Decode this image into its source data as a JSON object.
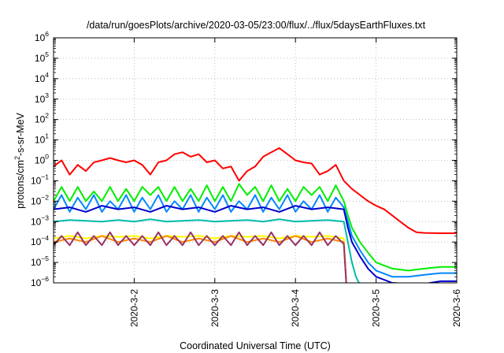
{
  "chart_data": {
    "type": "line",
    "title": "/data/run/goesPlots/archive/2020-03-05/23:00/flux/../flux/5daysEarthFluxes.txt",
    "xlabel": "Coordinated Universal Time (UTC)",
    "ylabel": "protons/cm²-s-sr-MeV",
    "ylabel_parts": {
      "pre": "protons/cm",
      "sup": "2",
      "post": "-s-sr-MeV"
    },
    "x_ticks": [
      "2020-3-2",
      "2020-3-3",
      "2020-3-4",
      "2020-3-5",
      "2020-3-6"
    ],
    "x_tick_days": [
      2,
      3,
      4,
      5,
      6
    ],
    "xlim_days": [
      1,
      6
    ],
    "y_scale": "log",
    "ylim": [
      1e-06,
      1000000.0
    ],
    "y_tick_exponents": [
      -6,
      -5,
      -4,
      -3,
      -2,
      -1,
      0,
      1,
      2,
      3,
      4,
      5,
      6
    ],
    "grid": true,
    "legend": "none",
    "series": [
      {
        "color": "#ff0000",
        "x": [
          1.0,
          1.1,
          1.2,
          1.3,
          1.4,
          1.5,
          1.6,
          1.7,
          1.8,
          1.9,
          2.0,
          2.1,
          2.2,
          2.3,
          2.4,
          2.5,
          2.6,
          2.7,
          2.8,
          2.9,
          3.0,
          3.1,
          3.2,
          3.3,
          3.4,
          3.5,
          3.6,
          3.7,
          3.8,
          3.9,
          4.0,
          4.1,
          4.2,
          4.3,
          4.4,
          4.5,
          4.6,
          4.7,
          4.8,
          4.9,
          5.0,
          5.1,
          5.2,
          5.3,
          5.4,
          5.5,
          5.6,
          5.8,
          6.0
        ],
        "y": [
          0.5,
          1.0,
          0.2,
          0.6,
          0.3,
          0.8,
          1.0,
          1.3,
          1.0,
          0.8,
          1.0,
          0.6,
          0.2,
          0.8,
          1.0,
          2.0,
          2.5,
          1.5,
          2.0,
          0.8,
          1.0,
          0.4,
          0.5,
          0.1,
          0.3,
          0.5,
          1.5,
          2.5,
          4.0,
          2.0,
          1.0,
          0.8,
          0.7,
          0.2,
          0.3,
          0.6,
          0.1,
          0.04,
          0.02,
          0.01,
          0.006,
          0.004,
          0.002,
          0.001,
          0.0005,
          0.0003,
          0.00028,
          0.00027,
          0.00027
        ]
      },
      {
        "color": "#00ee00",
        "x": [
          1.0,
          1.1,
          1.2,
          1.3,
          1.4,
          1.5,
          1.6,
          1.7,
          1.8,
          1.9,
          2.0,
          2.1,
          2.2,
          2.3,
          2.4,
          2.5,
          2.6,
          2.7,
          2.8,
          2.9,
          3.0,
          3.1,
          3.2,
          3.3,
          3.4,
          3.5,
          3.6,
          3.7,
          3.8,
          3.9,
          4.0,
          4.1,
          4.2,
          4.3,
          4.4,
          4.5,
          4.6,
          4.65,
          4.7,
          4.8,
          4.9,
          5.0,
          5.2,
          5.4,
          5.6,
          5.8,
          6.0
        ],
        "y": [
          0.01,
          0.05,
          0.01,
          0.05,
          0.01,
          0.03,
          0.01,
          0.05,
          0.01,
          0.04,
          0.01,
          0.05,
          0.02,
          0.05,
          0.01,
          0.05,
          0.01,
          0.04,
          0.01,
          0.06,
          0.01,
          0.05,
          0.01,
          0.07,
          0.02,
          0.05,
          0.01,
          0.06,
          0.01,
          0.04,
          0.01,
          0.05,
          0.02,
          0.05,
          0.01,
          0.06,
          0.01,
          0.002,
          0.0005,
          0.0001,
          3e-05,
          1e-05,
          5e-06,
          4e-06,
          5e-06,
          6e-06,
          6e-06
        ]
      },
      {
        "color": "#0088ff",
        "x": [
          1.0,
          1.1,
          1.2,
          1.3,
          1.4,
          1.5,
          1.6,
          1.7,
          1.8,
          1.9,
          2.0,
          2.1,
          2.2,
          2.3,
          2.4,
          2.5,
          2.6,
          2.7,
          2.8,
          2.9,
          3.0,
          3.1,
          3.2,
          3.3,
          3.4,
          3.5,
          3.6,
          3.7,
          3.8,
          3.9,
          4.0,
          4.1,
          4.2,
          4.3,
          4.4,
          4.5,
          4.6,
          4.65,
          4.7,
          4.8,
          4.9,
          5.0,
          5.2,
          5.4,
          5.6,
          5.8,
          6.0
        ],
        "y": [
          0.004,
          0.02,
          0.003,
          0.015,
          0.004,
          0.02,
          0.003,
          0.01,
          0.004,
          0.02,
          0.003,
          0.015,
          0.004,
          0.02,
          0.003,
          0.01,
          0.004,
          0.02,
          0.003,
          0.015,
          0.004,
          0.02,
          0.003,
          0.01,
          0.004,
          0.02,
          0.003,
          0.015,
          0.004,
          0.02,
          0.003,
          0.01,
          0.004,
          0.02,
          0.003,
          0.015,
          0.005,
          0.001,
          0.0002,
          4e-05,
          1e-05,
          4e-06,
          2e-06,
          2e-06,
          2.5e-06,
          3e-06,
          3e-06
        ]
      },
      {
        "color": "#0000cc",
        "x": [
          1.0,
          1.2,
          1.4,
          1.6,
          1.8,
          2.0,
          2.2,
          2.4,
          2.6,
          2.8,
          3.0,
          3.2,
          3.4,
          3.6,
          3.8,
          4.0,
          4.2,
          4.4,
          4.6,
          4.65,
          4.7,
          4.8,
          4.9,
          5.0,
          5.2,
          5.4,
          5.6,
          5.8,
          6.0
        ],
        "y": [
          0.004,
          0.005,
          0.003,
          0.006,
          0.004,
          0.005,
          0.003,
          0.006,
          0.004,
          0.005,
          0.003,
          0.006,
          0.004,
          0.005,
          0.003,
          0.006,
          0.004,
          0.005,
          0.004,
          0.0005,
          0.0001,
          2e-05,
          5e-06,
          2e-06,
          1e-06,
          9e-07,
          9e-07,
          1.2e-06,
          1.2e-06
        ]
      },
      {
        "color": "#00bbaa",
        "x": [
          1.0,
          1.2,
          1.4,
          1.6,
          1.8,
          2.0,
          2.2,
          2.4,
          2.6,
          2.8,
          3.0,
          3.2,
          3.4,
          3.6,
          3.8,
          4.0,
          4.2,
          4.4,
          4.6,
          4.65,
          4.7,
          4.75,
          4.8
        ],
        "y": [
          0.001,
          0.0012,
          0.0011,
          0.001,
          0.0012,
          0.001,
          0.0013,
          0.001,
          0.0011,
          0.0012,
          0.001,
          0.0011,
          0.0012,
          0.001,
          0.0013,
          0.001,
          0.0011,
          0.0012,
          0.001,
          0.0001,
          1e-05,
          2e-06,
          8e-07
        ]
      },
      {
        "color": "#ffff00",
        "x": [
          1.0,
          1.2,
          1.4,
          1.6,
          1.8,
          2.0,
          2.2,
          2.4,
          2.6,
          2.8,
          3.0,
          3.2,
          3.4,
          3.6,
          3.8,
          4.0,
          4.2,
          4.4,
          4.6,
          4.63,
          4.66
        ],
        "y": [
          0.00015,
          0.0002,
          0.00015,
          0.0002,
          0.00018,
          0.0002,
          0.00015,
          0.0002,
          0.00018,
          0.0002,
          0.00015,
          0.0002,
          0.00018,
          0.0002,
          0.00015,
          0.0002,
          0.00018,
          0.0002,
          0.00015,
          1e-06,
          8e-07
        ]
      },
      {
        "color": "#ff8800",
        "x": [
          1.0,
          1.2,
          1.4,
          1.6,
          1.8,
          2.0,
          2.2,
          2.4,
          2.6,
          2.8,
          3.0,
          3.2,
          3.4,
          3.6,
          3.8,
          4.0,
          4.2,
          4.4,
          4.6,
          4.63,
          4.66
        ],
        "y": [
          0.0001,
          0.00015,
          0.0001,
          0.0002,
          0.0001,
          0.00015,
          0.0001,
          0.0002,
          0.0001,
          0.00015,
          0.0001,
          0.0002,
          0.0001,
          0.00015,
          0.0001,
          0.0002,
          0.0001,
          0.00015,
          0.0001,
          1e-06,
          8e-07
        ]
      },
      {
        "color": "#993366",
        "x": [
          1.0,
          1.1,
          1.2,
          1.3,
          1.4,
          1.5,
          1.6,
          1.7,
          1.8,
          1.9,
          2.0,
          2.1,
          2.2,
          2.3,
          2.4,
          2.5,
          2.6,
          2.7,
          2.8,
          2.9,
          3.0,
          3.1,
          3.2,
          3.3,
          3.4,
          3.5,
          3.6,
          3.7,
          3.8,
          3.9,
          4.0,
          4.1,
          4.2,
          4.3,
          4.4,
          4.5,
          4.6,
          4.63,
          4.66
        ],
        "y": [
          7e-05,
          0.0002,
          7e-05,
          0.0003,
          7e-05,
          0.0002,
          7e-05,
          0.0003,
          7e-05,
          0.0002,
          7e-05,
          0.0002,
          7e-05,
          0.0003,
          7e-05,
          0.0002,
          7e-05,
          0.0003,
          7e-05,
          0.0002,
          7e-05,
          0.0002,
          7e-05,
          0.0003,
          7e-05,
          0.0002,
          7e-05,
          0.0003,
          7e-05,
          0.0002,
          7e-05,
          0.0002,
          7e-05,
          0.0003,
          7e-05,
          0.0002,
          8e-05,
          1e-06,
          8e-07
        ]
      }
    ]
  }
}
